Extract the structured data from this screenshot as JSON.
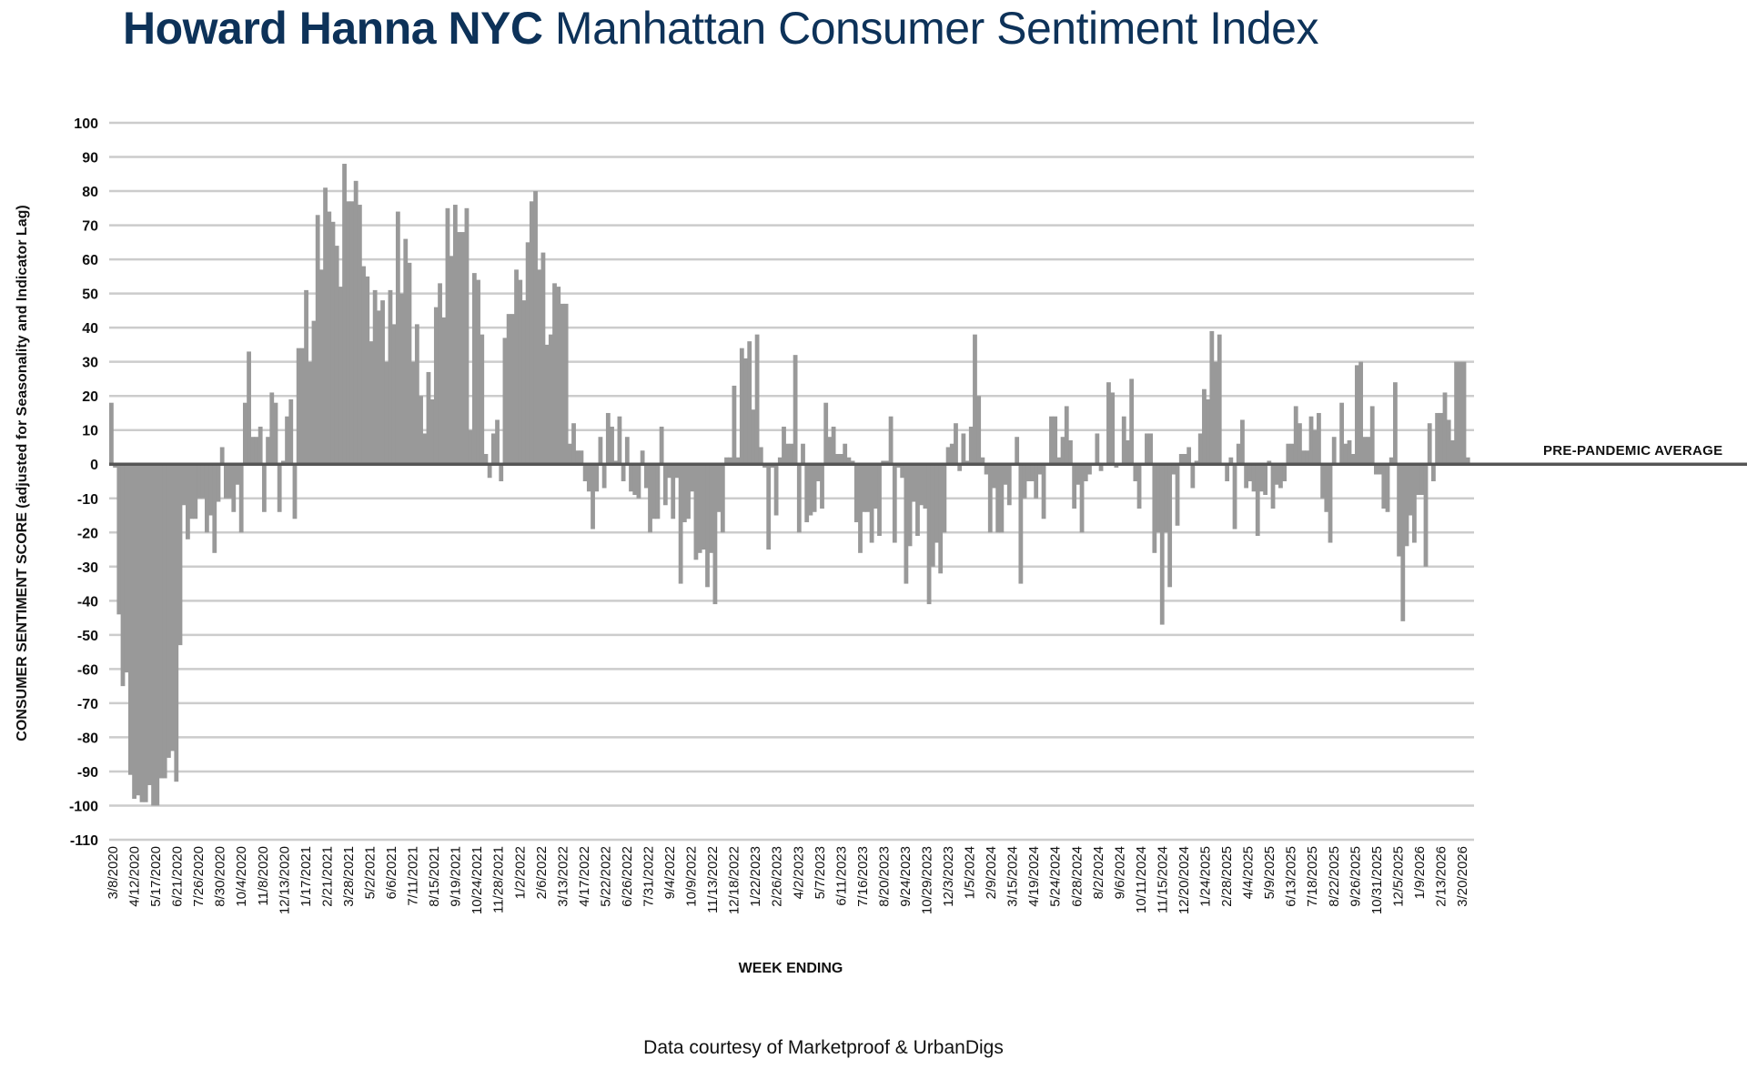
{
  "title": {
    "bold": "Howard Hanna NYC",
    "rest": "Manhattan Consumer Sentiment Index",
    "color": "#0d3259"
  },
  "footer": "Data courtesy of Marketproof & UrbanDigs",
  "chart_data": {
    "type": "bar",
    "title": "Howard Hanna NYC Manhattan Consumer Sentiment Index",
    "xlabel": "WEEK ENDING",
    "ylabel": "CONSUMER SENTIMENT SCORE (adjusted for Seasonality and Indicator Lag)",
    "ylim": [
      -110,
      100
    ],
    "yticks": [
      100,
      90,
      80,
      70,
      60,
      50,
      40,
      30,
      20,
      10,
      0,
      -10,
      -20,
      -30,
      -40,
      -50,
      -60,
      -70,
      -80,
      -90,
      -100,
      -110
    ],
    "grid": true,
    "bar_color": "#999999",
    "reference_line": {
      "value": 0,
      "label": "PRE-PANDEMIC  AVERAGE",
      "color": "#555555"
    },
    "x_tick_labels": [
      "3/8/2020",
      "4/12/2020",
      "5/17/2020",
      "6/21/2020",
      "7/26/2020",
      "8/30/2020",
      "10/4/2020",
      "11/8/2020",
      "12/13/2020",
      "1/17/2021",
      "2/21/2021",
      "3/28/2021",
      "5/2/2021",
      "6/6/2021",
      "7/11/2021",
      "8/15/2021",
      "9/19/2021",
      "10/24/2021",
      "11/28/2021",
      "1/2/2022",
      "2/6/2022",
      "3/13/2022",
      "4/17/2022",
      "5/22/2022",
      "6/26/2022",
      "7/31/2022",
      "9/4/2022",
      "10/9/2022",
      "11/13/2022",
      "12/18/2022",
      "1/22/2023",
      "2/26/2023",
      "4/2/2023",
      "5/7/2023",
      "6/11/2023",
      "7/16/2023",
      "8/20/2023",
      "9/24/2023",
      "10/29/2023",
      "12/3/2023",
      "1/5/2024",
      "2/9/2024",
      "3/15/2024",
      "4/19/2024",
      "5/24/2024",
      "6/28/2024",
      "8/2/2024",
      "9/6/2024",
      "10/11/2024",
      "11/15/2024",
      "12/20/2024",
      "1/24/2025",
      "2/28/2025",
      "4/4/2025",
      "5/9/2025",
      "6/13/2025",
      "7/18/2025",
      "8/22/2025",
      "9/26/2025",
      "10/31/2025",
      "12/5/2025",
      "1/9/2026",
      "2/13/2026",
      "3/20/2026"
    ],
    "values": [
      18,
      -1,
      -44,
      -65,
      -61,
      -91,
      -98,
      -97,
      -99,
      -99,
      -94,
      -100,
      -100,
      -92,
      -92,
      -86,
      -84,
      -93,
      -53,
      -12,
      -22,
      -16,
      -16,
      -10,
      -10,
      -20,
      -15,
      -26,
      -11,
      5,
      -10,
      -10,
      -14,
      -6,
      -20,
      18,
      33,
      8,
      8,
      11,
      -14,
      8,
      21,
      18,
      -14,
      1,
      14,
      19,
      -16,
      34,
      34,
      51,
      30,
      42,
      73,
      57,
      81,
      74,
      71,
      64,
      52,
      88,
      77,
      77,
      83,
      76,
      58,
      55,
      36,
      51,
      45,
      48,
      30,
      51,
      41,
      74,
      50,
      66,
      59,
      30,
      41,
      20,
      9,
      27,
      19,
      46,
      53,
      43,
      75,
      61,
      76,
      68,
      68,
      75,
      10,
      56,
      54,
      38,
      3,
      -4,
      9,
      13,
      -5,
      37,
      44,
      44,
      57,
      54,
      48,
      65,
      77,
      80,
      57,
      62,
      35,
      38,
      53,
      52,
      47,
      47,
      6,
      12,
      4,
      4,
      -5,
      -8,
      -19,
      -8,
      8,
      -7,
      15,
      11,
      1,
      14,
      -5,
      8,
      -8,
      -9,
      -10,
      4,
      -7,
      -20,
      -16,
      -16,
      11,
      -12,
      -4,
      -16,
      -4,
      -35,
      -17,
      -16,
      -8,
      -28,
      -26,
      -25,
      -36,
      -26,
      -41,
      -14,
      -20,
      2,
      2,
      23,
      2,
      34,
      31,
      36,
      16,
      38,
      5,
      -1,
      -25,
      -1,
      -15,
      2,
      11,
      6,
      6,
      32,
      -20,
      6,
      -17,
      -15,
      -14,
      -5,
      -13,
      18,
      8,
      11,
      3,
      3,
      6,
      2,
      1,
      -17,
      -26,
      -14,
      -14,
      -23,
      -13,
      -21,
      1,
      1,
      14,
      -23,
      -1,
      -4,
      -35,
      -24,
      -11,
      -21,
      -12,
      -13,
      -41,
      -30,
      -23,
      -32,
      -20,
      5,
      6,
      12,
      -2,
      9,
      1,
      11,
      38,
      20,
      2,
      -3,
      -20,
      -7,
      -20,
      -20,
      -6,
      -12,
      0,
      8,
      -35,
      -10,
      -5,
      -5,
      -10,
      -3,
      -16,
      0,
      14,
      14,
      2,
      8,
      17,
      7,
      -13,
      -6,
      -20,
      -5,
      -3,
      0,
      9,
      -2,
      0,
      24,
      21,
      -1,
      0,
      14,
      7,
      25,
      -5,
      -13,
      0,
      9,
      9,
      -26,
      -20,
      -47,
      -20,
      -36,
      -3,
      -18,
      3,
      3,
      5,
      -7,
      1,
      9,
      22,
      19,
      39,
      30,
      38,
      0,
      -5,
      2,
      -19,
      6,
      13,
      -7,
      -5,
      -8,
      -21,
      -8,
      -9,
      1,
      -13,
      -6,
      -7,
      -5,
      6,
      6,
      17,
      12,
      4,
      4,
      14,
      10,
      15,
      -10,
      -14,
      -23,
      8,
      0,
      18,
      6,
      7,
      3,
      29,
      30,
      8,
      8,
      17,
      -3,
      -3,
      -13,
      -14,
      2,
      24,
      -27,
      -46,
      -24,
      -15,
      -23,
      -9,
      -9,
      -30,
      12,
      -5,
      15,
      15,
      21,
      13,
      7,
      30,
      30,
      30,
      2
    ]
  }
}
